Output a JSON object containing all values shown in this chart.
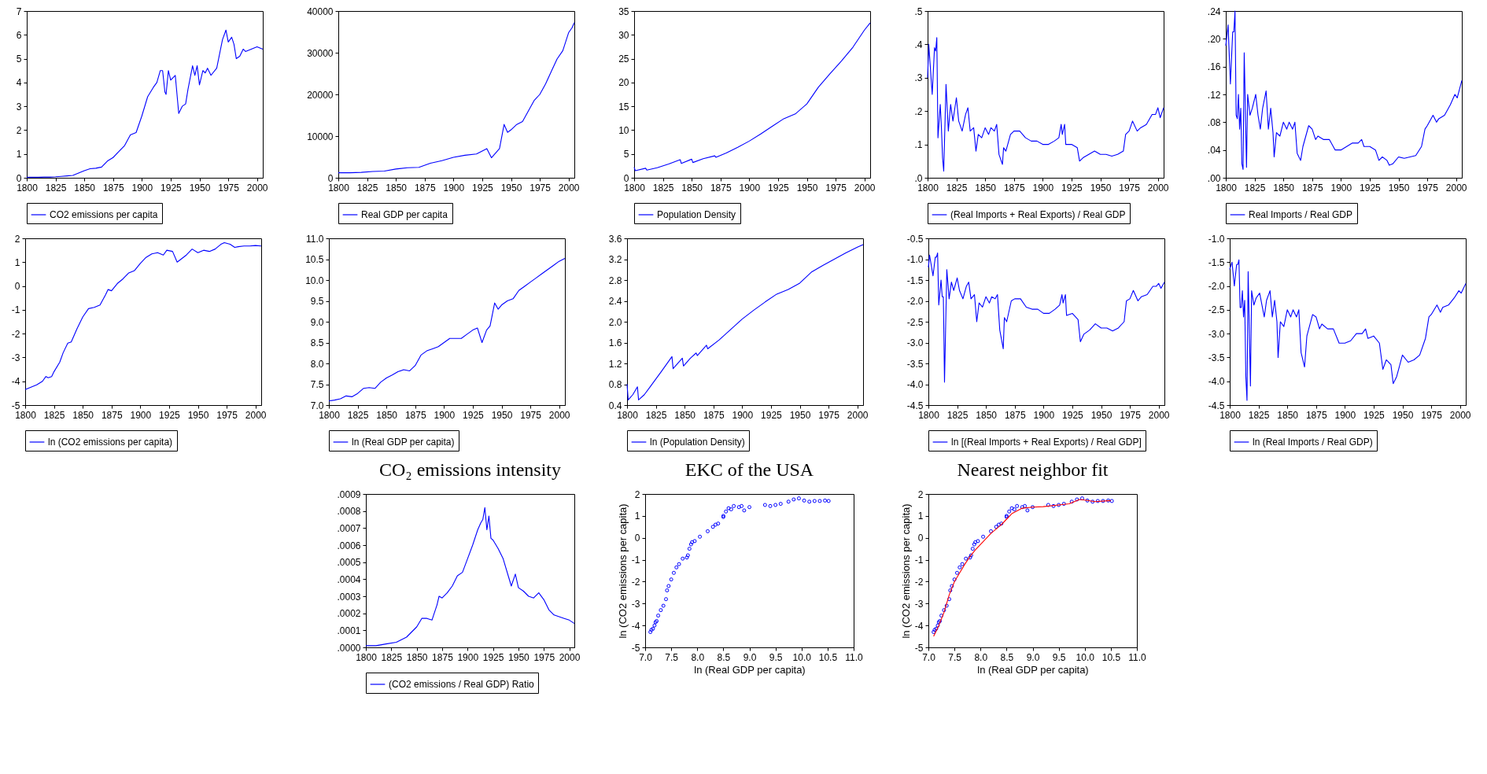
{
  "chart_data": [
    {
      "type": "line",
      "legend": "bottom",
      "xlim": [
        1800,
        2005
      ],
      "xticks": [
        1800,
        1825,
        1850,
        1875,
        1900,
        1925,
        1950,
        1975,
        2000
      ],
      "ylim": [
        0,
        7
      ],
      "yticks": [
        0,
        1,
        2,
        3,
        4,
        5,
        6,
        7
      ],
      "x": [
        1800,
        1805,
        1810,
        1815,
        1820,
        1825,
        1830,
        1835,
        1840,
        1845,
        1850,
        1855,
        1860,
        1865,
        1870,
        1875,
        1880,
        1885,
        1890,
        1895,
        1900,
        1905,
        1910,
        1913,
        1916,
        1918,
        1920,
        1921,
        1923,
        1925,
        1929,
        1932,
        1935,
        1938,
        1940,
        1944,
        1946,
        1948,
        1950,
        1953,
        1955,
        1957,
        1960,
        1965,
        1970,
        1973,
        1975,
        1978,
        1980,
        1982,
        1985,
        1988,
        1990,
        1995,
        2000,
        2005
      ],
      "series": [
        {
          "name": "CO2 emissions per capita",
          "color": "#0000ff",
          "values": [
            0.02,
            0.02,
            0.02,
            0.03,
            0.03,
            0.04,
            0.06,
            0.08,
            0.1,
            0.2,
            0.3,
            0.38,
            0.4,
            0.45,
            0.7,
            0.85,
            1.1,
            1.35,
            1.8,
            1.9,
            2.6,
            3.4,
            3.8,
            4.0,
            4.5,
            4.5,
            3.6,
            3.5,
            4.5,
            4.1,
            4.3,
            2.7,
            3.0,
            3.1,
            3.7,
            4.7,
            4.3,
            4.7,
            3.9,
            4.5,
            4.4,
            4.6,
            4.3,
            4.6,
            5.8,
            6.2,
            5.7,
            5.9,
            5.6,
            5.0,
            5.1,
            5.4,
            5.3,
            5.4,
            5.5,
            5.4
          ]
        }
      ]
    },
    {
      "type": "line",
      "legend": "bottom",
      "xlim": [
        1800,
        2005
      ],
      "xticks": [
        1800,
        1825,
        1850,
        1875,
        1900,
        1925,
        1950,
        1975,
        2000
      ],
      "ylim": [
        0,
        40000
      ],
      "yticks": [
        0,
        10000,
        20000,
        30000,
        40000
      ],
      "x": [
        1800,
        1810,
        1820,
        1830,
        1840,
        1850,
        1860,
        1870,
        1880,
        1890,
        1900,
        1910,
        1920,
        1929,
        1933,
        1940,
        1944,
        1947,
        1950,
        1955,
        1960,
        1965,
        1970,
        1975,
        1980,
        1985,
        1990,
        1995,
        2000,
        2003,
        2005
      ],
      "series": [
        {
          "name": "Real GDP per capita",
          "color": "#0000ff",
          "values": [
            1200,
            1200,
            1300,
            1500,
            1600,
            2100,
            2400,
            2500,
            3500,
            4100,
            4900,
            5400,
            5700,
            7000,
            4800,
            7000,
            12800,
            10900,
            11500,
            12800,
            13500,
            16000,
            18500,
            20000,
            22500,
            25500,
            28500,
            30500,
            34800,
            36000,
            37200
          ]
        }
      ]
    },
    {
      "type": "line",
      "legend": "bottom",
      "xlim": [
        1800,
        2005
      ],
      "xticks": [
        1800,
        1825,
        1850,
        1875,
        1900,
        1925,
        1950,
        1975,
        2000
      ],
      "ylim": [
        0,
        35
      ],
      "yticks": [
        0,
        5,
        10,
        15,
        20,
        25,
        30,
        35
      ],
      "x": [
        1800,
        1801,
        1810,
        1811,
        1820,
        1830,
        1840,
        1841,
        1850,
        1851,
        1860,
        1870,
        1871,
        1880,
        1890,
        1900,
        1910,
        1920,
        1930,
        1940,
        1950,
        1960,
        1970,
        1980,
        1990,
        2000,
        2005
      ],
      "series": [
        {
          "name": "Population Density",
          "color": "#0000ff",
          "values": [
            2.2,
            1.5,
            2,
            1.6,
            2.1,
            2.9,
            3.8,
            3.0,
            3.9,
            3.2,
            4.0,
            4.6,
            4.3,
            5.2,
            6.4,
            7.7,
            9.2,
            10.8,
            12.4,
            13.4,
            15.5,
            19.0,
            21.8,
            24.5,
            27.4,
            31.0,
            32.5
          ]
        }
      ]
    },
    {
      "type": "line",
      "legend": "bottom",
      "xlim": [
        1800,
        2005
      ],
      "xticks": [
        1800,
        1825,
        1850,
        1875,
        1900,
        1925,
        1950,
        1975,
        2000
      ],
      "ylim": [
        0,
        0.5
      ],
      "yticks": [
        {
          "value": 0,
          "label": ".0"
        },
        {
          "value": 0.1,
          "label": ".1"
        },
        {
          "value": 0.2,
          "label": ".2"
        },
        {
          "value": 0.3,
          "label": ".3"
        },
        {
          "value": 0.4,
          "label": ".4"
        },
        {
          "value": 0.5,
          "label": ".5"
        }
      ],
      "x": [
        1800,
        1801,
        1804,
        1806,
        1807,
        1808,
        1809,
        1811,
        1812,
        1813,
        1814,
        1816,
        1818,
        1820,
        1822,
        1825,
        1827,
        1830,
        1833,
        1835,
        1837,
        1840,
        1842,
        1844,
        1847,
        1850,
        1853,
        1855,
        1858,
        1860,
        1862,
        1865,
        1866,
        1868,
        1872,
        1875,
        1880,
        1885,
        1890,
        1895,
        1900,
        1905,
        1910,
        1914,
        1916,
        1917,
        1919,
        1920,
        1925,
        1930,
        1932,
        1935,
        1940,
        1945,
        1950,
        1955,
        1960,
        1965,
        1970,
        1972,
        1975,
        1978,
        1982,
        1985,
        1990,
        1995,
        1998,
        2000,
        2002,
        2005
      ],
      "series": [
        {
          "name": "(Real Imports + Real Exports) / Real GDP",
          "color": "#0000ff",
          "values": [
            0.3,
            0.4,
            0.25,
            0.39,
            0.38,
            0.42,
            0.12,
            0.22,
            0.15,
            0.06,
            0.02,
            0.28,
            0.14,
            0.22,
            0.17,
            0.24,
            0.17,
            0.14,
            0.19,
            0.21,
            0.14,
            0.15,
            0.08,
            0.13,
            0.12,
            0.15,
            0.13,
            0.15,
            0.14,
            0.16,
            0.07,
            0.04,
            0.09,
            0.08,
            0.13,
            0.14,
            0.14,
            0.12,
            0.11,
            0.11,
            0.1,
            0.1,
            0.11,
            0.12,
            0.16,
            0.13,
            0.16,
            0.1,
            0.1,
            0.09,
            0.05,
            0.06,
            0.07,
            0.08,
            0.07,
            0.07,
            0.065,
            0.07,
            0.08,
            0.13,
            0.14,
            0.17,
            0.14,
            0.15,
            0.16,
            0.19,
            0.19,
            0.21,
            0.18,
            0.21
          ]
        }
      ]
    },
    {
      "type": "line",
      "legend": "bottom",
      "xlim": [
        1800,
        2005
      ],
      "xticks": [
        1800,
        1825,
        1850,
        1875,
        1900,
        1925,
        1950,
        1975,
        2000
      ],
      "ylim": [
        0,
        0.24
      ],
      "yticks": [
        {
          "value": 0,
          "label": ".00"
        },
        {
          "value": 0.04,
          "label": ".04"
        },
        {
          "value": 0.08,
          "label": ".08"
        },
        {
          "value": 0.12,
          "label": ".12"
        },
        {
          "value": 0.16,
          "label": ".16"
        },
        {
          "value": 0.2,
          "label": ".20"
        },
        {
          "value": 0.24,
          "label": ".24"
        }
      ],
      "x": [
        1800,
        1802,
        1804,
        1806,
        1807,
        1808,
        1809,
        1810,
        1811,
        1812,
        1813,
        1814,
        1815,
        1816,
        1818,
        1819,
        1821,
        1823,
        1826,
        1828,
        1830,
        1832,
        1835,
        1837,
        1839,
        1841,
        1842,
        1844,
        1847,
        1850,
        1853,
        1855,
        1858,
        1860,
        1862,
        1865,
        1867,
        1872,
        1875,
        1878,
        1880,
        1885,
        1890,
        1895,
        1900,
        1905,
        1910,
        1915,
        1918,
        1920,
        1925,
        1930,
        1933,
        1936,
        1940,
        1942,
        1945,
        1950,
        1955,
        1960,
        1965,
        1970,
        1973,
        1975,
        1980,
        1983,
        1985,
        1990,
        1995,
        1999,
        2001,
        2005
      ],
      "series": [
        {
          "name": "Real Imports / Real GDP",
          "color": "#0000ff",
          "values": [
            0.19,
            0.22,
            0.135,
            0.21,
            0.21,
            0.24,
            0.09,
            0.085,
            0.12,
            0.07,
            0.1,
            0.02,
            0.012,
            0.18,
            0.015,
            0.12,
            0.09,
            0.1,
            0.12,
            0.09,
            0.07,
            0.1,
            0.125,
            0.07,
            0.1,
            0.065,
            0.03,
            0.065,
            0.06,
            0.08,
            0.07,
            0.08,
            0.07,
            0.08,
            0.035,
            0.025,
            0.045,
            0.075,
            0.07,
            0.055,
            0.06,
            0.055,
            0.055,
            0.04,
            0.04,
            0.045,
            0.05,
            0.05,
            0.055,
            0.045,
            0.045,
            0.04,
            0.025,
            0.03,
            0.025,
            0.018,
            0.02,
            0.03,
            0.028,
            0.03,
            0.032,
            0.045,
            0.07,
            0.075,
            0.09,
            0.08,
            0.085,
            0.09,
            0.105,
            0.12,
            0.115,
            0.14
          ]
        }
      ]
    },
    {
      "type": "line",
      "legend": "bottom",
      "xlim": [
        1800,
        2005
      ],
      "xticks": [
        1800,
        1825,
        1850,
        1875,
        1900,
        1925,
        1950,
        1975,
        2000
      ],
      "ylim": [
        -5,
        2
      ],
      "yticks": [
        -5,
        -4,
        -3,
        -2,
        -1,
        0,
        1,
        2
      ],
      "x": [
        1800,
        1805,
        1810,
        1815,
        1818,
        1820,
        1823,
        1825,
        1830,
        1833,
        1837,
        1840,
        1845,
        1850,
        1855,
        1860,
        1865,
        1870,
        1872,
        1875,
        1880,
        1885,
        1890,
        1895,
        1900,
        1905,
        1910,
        1915,
        1920,
        1923,
        1928,
        1932,
        1936,
        1940,
        1945,
        1950,
        1955,
        1960,
        1965,
        1970,
        1973,
        1978,
        1982,
        1985,
        1990,
        1995,
        2000,
        2005
      ],
      "series": [
        {
          "name": "ln (CO2 emissions per capita)",
          "color": "#0000ff",
          "values": [
            -4.35,
            -4.25,
            -4.15,
            -4.0,
            -3.8,
            -3.85,
            -3.8,
            -3.6,
            -3.2,
            -2.8,
            -2.4,
            -2.35,
            -1.8,
            -1.3,
            -0.95,
            -0.9,
            -0.8,
            -0.35,
            -0.15,
            -0.2,
            0.1,
            0.3,
            0.55,
            0.65,
            0.95,
            1.2,
            1.35,
            1.4,
            1.3,
            1.5,
            1.45,
            1.0,
            1.15,
            1.3,
            1.55,
            1.4,
            1.5,
            1.45,
            1.55,
            1.75,
            1.82,
            1.75,
            1.62,
            1.65,
            1.68,
            1.68,
            1.7,
            1.68
          ]
        }
      ]
    },
    {
      "type": "line",
      "legend": "bottom",
      "xlim": [
        1800,
        2005
      ],
      "xticks": [
        1800,
        1825,
        1850,
        1875,
        1900,
        1925,
        1950,
        1975,
        2000
      ],
      "ylim": [
        7,
        11
      ],
      "yticks": [
        {
          "value": 7,
          "label": "7.0"
        },
        7.5,
        {
          "value": 8,
          "label": "8.0"
        },
        8.5,
        {
          "value": 9,
          "label": "9.0"
        },
        9.5,
        {
          "value": 10,
          "label": "10.0"
        },
        10.5,
        {
          "value": 11,
          "label": "11.0"
        }
      ],
      "x": [
        1800,
        1805,
        1810,
        1815,
        1820,
        1825,
        1830,
        1835,
        1840,
        1845,
        1850,
        1855,
        1860,
        1865,
        1870,
        1875,
        1880,
        1885,
        1890,
        1895,
        1900,
        1905,
        1910,
        1915,
        1920,
        1925,
        1929,
        1933,
        1937,
        1940,
        1944,
        1947,
        1950,
        1955,
        1960,
        1965,
        1970,
        1975,
        1980,
        1985,
        1990,
        1995,
        2000,
        2005
      ],
      "series": [
        {
          "name": "ln (Real GDP per capita)",
          "color": "#0000ff",
          "values": [
            7.1,
            7.12,
            7.15,
            7.22,
            7.2,
            7.28,
            7.4,
            7.42,
            7.4,
            7.55,
            7.65,
            7.72,
            7.8,
            7.85,
            7.82,
            7.95,
            8.2,
            8.3,
            8.35,
            8.4,
            8.5,
            8.6,
            8.6,
            8.6,
            8.7,
            8.8,
            8.85,
            8.5,
            8.8,
            8.9,
            9.45,
            9.3,
            9.4,
            9.5,
            9.55,
            9.75,
            9.85,
            9.95,
            10.05,
            10.15,
            10.25,
            10.35,
            10.45,
            10.52
          ]
        }
      ]
    },
    {
      "type": "line",
      "legend": "bottom",
      "xlim": [
        1800,
        2005
      ],
      "xticks": [
        1800,
        1825,
        1850,
        1875,
        1900,
        1925,
        1950,
        1975,
        2000
      ],
      "ylim": [
        0.4,
        3.6
      ],
      "yticks": [
        0.4,
        0.8,
        1.2,
        1.6,
        {
          "value": 2,
          "label": "2.0"
        },
        2.4,
        2.8,
        3.2,
        3.6
      ],
      "x": [
        1800,
        1801,
        1805,
        1809,
        1810,
        1815,
        1820,
        1830,
        1839,
        1840,
        1848,
        1849,
        1855,
        1860,
        1861,
        1869,
        1870,
        1880,
        1890,
        1900,
        1910,
        1920,
        1930,
        1940,
        1950,
        1960,
        1970,
        1980,
        1990,
        2000,
        2005
      ],
      "series": [
        {
          "name": "ln (Population Density)",
          "color": "#0000ff",
          "values": [
            0.8,
            0.5,
            0.6,
            0.75,
            0.5,
            0.6,
            0.75,
            1.05,
            1.33,
            1.1,
            1.3,
            1.15,
            1.3,
            1.4,
            1.35,
            1.55,
            1.48,
            1.65,
            1.85,
            2.05,
            2.22,
            2.38,
            2.53,
            2.62,
            2.74,
            2.95,
            3.08,
            3.2,
            3.32,
            3.43,
            3.48
          ]
        }
      ]
    },
    {
      "type": "line",
      "legend": "bottom",
      "xlim": [
        1800,
        2005
      ],
      "xticks": [
        1800,
        1825,
        1850,
        1875,
        1900,
        1925,
        1950,
        1975,
        2000
      ],
      "ylim": [
        -4.5,
        -0.5
      ],
      "yticks": [
        -4.5,
        {
          "value": -4,
          "label": "-4.0"
        },
        -3.5,
        {
          "value": -3,
          "label": "-3.0"
        },
        -2.5,
        {
          "value": -2,
          "label": "-2.0"
        },
        -1.5,
        {
          "value": -1,
          "label": "-1.0"
        },
        -0.5
      ],
      "x": [
        1800,
        1801,
        1804,
        1806,
        1807,
        1808,
        1809,
        1811,
        1812,
        1813,
        1814,
        1816,
        1818,
        1820,
        1822,
        1825,
        1827,
        1830,
        1833,
        1835,
        1837,
        1840,
        1842,
        1844,
        1847,
        1850,
        1853,
        1855,
        1858,
        1860,
        1862,
        1865,
        1866,
        1868,
        1872,
        1875,
        1880,
        1885,
        1890,
        1895,
        1900,
        1905,
        1910,
        1914,
        1916,
        1917,
        1919,
        1920,
        1925,
        1930,
        1932,
        1935,
        1940,
        1945,
        1950,
        1955,
        1960,
        1965,
        1970,
        1972,
        1975,
        1978,
        1982,
        1985,
        1990,
        1995,
        1998,
        2000,
        2002,
        2005
      ],
      "series": [
        {
          "name": "ln [(Real Imports + Real Exports) / Real GDP]",
          "color": "#0000ff",
          "values": [
            -1.2,
            -0.9,
            -1.4,
            -0.95,
            -0.95,
            -0.85,
            -2.1,
            -1.5,
            -1.9,
            -1.9,
            -3.95,
            -1.25,
            -1.95,
            -1.55,
            -1.75,
            -1.45,
            -1.75,
            -1.95,
            -1.65,
            -1.55,
            -1.95,
            -1.85,
            -2.5,
            -2.05,
            -2.15,
            -1.9,
            -2.05,
            -1.9,
            -1.95,
            -1.85,
            -2.7,
            -3.15,
            -2.4,
            -2.5,
            -2.0,
            -1.95,
            -1.95,
            -2.15,
            -2.2,
            -2.2,
            -2.3,
            -2.3,
            -2.2,
            -2.1,
            -1.85,
            -2.05,
            -1.85,
            -2.35,
            -2.3,
            -2.45,
            -2.98,
            -2.8,
            -2.7,
            -2.55,
            -2.65,
            -2.65,
            -2.72,
            -2.65,
            -2.5,
            -2.0,
            -1.95,
            -1.75,
            -2.0,
            -1.9,
            -1.85,
            -1.65,
            -1.65,
            -1.58,
            -1.7,
            -1.55
          ]
        }
      ]
    },
    {
      "type": "line",
      "legend": "bottom",
      "xlim": [
        1800,
        2005
      ],
      "xticks": [
        1800,
        1825,
        1850,
        1875,
        1900,
        1925,
        1950,
        1975,
        2000
      ],
      "ylim": [
        -4.5,
        -1
      ],
      "yticks": [
        -4.5,
        {
          "value": -4,
          "label": "-4.0"
        },
        -3.5,
        {
          "value": -3,
          "label": "-3.0"
        },
        -2.5,
        {
          "value": -2,
          "label": "-2.0"
        },
        -1.5,
        {
          "value": -1,
          "label": "-1.0"
        }
      ],
      "x": [
        1800,
        1802,
        1804,
        1806,
        1807,
        1808,
        1809,
        1810,
        1811,
        1812,
        1813,
        1814,
        1815,
        1816,
        1818,
        1819,
        1821,
        1823,
        1826,
        1828,
        1830,
        1832,
        1835,
        1837,
        1839,
        1841,
        1842,
        1844,
        1847,
        1850,
        1853,
        1855,
        1858,
        1860,
        1862,
        1865,
        1867,
        1872,
        1875,
        1878,
        1880,
        1885,
        1890,
        1895,
        1900,
        1905,
        1910,
        1915,
        1918,
        1920,
        1925,
        1930,
        1933,
        1936,
        1940,
        1942,
        1945,
        1950,
        1955,
        1960,
        1965,
        1970,
        1973,
        1975,
        1980,
        1983,
        1985,
        1990,
        1995,
        1999,
        2001,
        2005
      ],
      "series": [
        {
          "name": "ln (Real Imports / Real GDP)",
          "color": "#0000ff",
          "values": [
            -1.65,
            -1.5,
            -2.0,
            -1.55,
            -1.55,
            -1.45,
            -2.45,
            -2.45,
            -2.1,
            -2.65,
            -2.3,
            -3.9,
            -4.4,
            -1.7,
            -4.1,
            -2.1,
            -2.4,
            -2.25,
            -2.15,
            -2.4,
            -2.65,
            -2.3,
            -2.1,
            -2.65,
            -2.3,
            -2.75,
            -3.5,
            -2.75,
            -2.85,
            -2.5,
            -2.65,
            -2.5,
            -2.65,
            -2.5,
            -3.4,
            -3.7,
            -3.05,
            -2.6,
            -2.65,
            -2.9,
            -2.8,
            -2.9,
            -2.9,
            -3.2,
            -3.2,
            -3.15,
            -3.0,
            -3.0,
            -2.9,
            -3.1,
            -3.05,
            -3.2,
            -3.75,
            -3.55,
            -3.65,
            -4.05,
            -3.9,
            -3.45,
            -3.6,
            -3.55,
            -3.45,
            -3.1,
            -2.65,
            -2.6,
            -2.4,
            -2.55,
            -2.45,
            -2.4,
            -2.25,
            -2.1,
            -2.15,
            -1.95
          ]
        }
      ]
    },
    {
      "type": "line",
      "title": "CO₂ emissions intensity",
      "legend": "bottom",
      "xlim": [
        1800,
        2005
      ],
      "xticks": [
        1800,
        1825,
        1850,
        1875,
        1900,
        1925,
        1950,
        1975,
        2000
      ],
      "ylim": [
        0,
        0.0009
      ],
      "yticks": [
        {
          "value": 0,
          "label": ".0000"
        },
        {
          "value": 0.0001,
          "label": ".0001"
        },
        {
          "value": 0.0002,
          "label": ".0002"
        },
        {
          "value": 0.0003,
          "label": ".0003"
        },
        {
          "value": 0.0004,
          "label": ".0004"
        },
        {
          "value": 0.0005,
          "label": ".0005"
        },
        {
          "value": 0.0006,
          "label": ".0006"
        },
        {
          "value": 0.0007,
          "label": ".0007"
        },
        {
          "value": 0.0008,
          "label": ".0008"
        },
        {
          "value": 0.0009,
          "label": ".0009"
        }
      ],
      "x": [
        1800,
        1810,
        1820,
        1830,
        1840,
        1850,
        1855,
        1860,
        1865,
        1870,
        1872,
        1875,
        1880,
        1885,
        1890,
        1895,
        1900,
        1905,
        1910,
        1913,
        1915,
        1917,
        1919,
        1921,
        1923,
        1925,
        1930,
        1935,
        1940,
        1943,
        1947,
        1950,
        1955,
        1960,
        1965,
        1970,
        1975,
        1980,
        1985,
        1990,
        1995,
        2000,
        2005
      ],
      "series": [
        {
          "name": "(CO2 emissions / Real GDP) Ratio",
          "color": "#0000ff",
          "values": [
            1e-05,
            1e-05,
            2e-05,
            3e-05,
            6e-05,
            0.00012,
            0.00017,
            0.00017,
            0.00016,
            0.00025,
            0.0003,
            0.00029,
            0.00032,
            0.00036,
            0.00042,
            0.00044,
            0.00052,
            0.0006,
            0.00069,
            0.00073,
            0.00075,
            0.00082,
            0.00069,
            0.00077,
            0.00064,
            0.00063,
            0.00058,
            0.00052,
            0.00042,
            0.00036,
            0.00043,
            0.00035,
            0.00033,
            0.0003,
            0.00029,
            0.00032,
            0.00028,
            0.00022,
            0.00019,
            0.00018,
            0.00017,
            0.00016,
            0.00014
          ]
        }
      ]
    },
    {
      "type": "scatter",
      "title": "EKC of the USA",
      "xlabel": "ln (Real GDP per capita)",
      "ylabel": "ln (CO2 emissions per capita)",
      "marker": "circle",
      "xlim": [
        7,
        11
      ],
      "xticks": [
        {
          "value": 7,
          "label": "7.0"
        },
        7.5,
        {
          "value": 8,
          "label": "8.0"
        },
        8.5,
        {
          "value": 9,
          "label": "9.0"
        },
        9.5,
        {
          "value": 10,
          "label": "10.0"
        },
        10.5,
        {
          "value": 11,
          "label": "11.0"
        }
      ],
      "ylim": [
        -5,
        2
      ],
      "yticks": [
        -5,
        -4,
        -3,
        -2,
        -1,
        0,
        1,
        2
      ],
      "x": [
        7.1,
        7.12,
        7.15,
        7.18,
        7.2,
        7.22,
        7.25,
        7.3,
        7.35,
        7.4,
        7.42,
        7.45,
        7.5,
        7.55,
        7.6,
        7.65,
        7.72,
        7.8,
        7.82,
        7.85,
        7.88,
        7.9,
        7.95,
        8.05,
        8.2,
        8.3,
        8.35,
        8.4,
        8.5,
        8.55,
        8.6,
        8.65,
        8.7,
        8.8,
        8.85,
        8.5,
        8.9,
        9.0,
        9.3,
        9.4,
        9.5,
        9.6,
        9.75,
        9.85,
        9.95,
        10.05,
        10.15,
        10.25,
        10.35,
        10.45,
        10.52
      ],
      "series": [
        {
          "color": "#0000ff",
          "values": [
            -4.3,
            -4.2,
            -4.15,
            -4.0,
            -3.85,
            -3.8,
            -3.55,
            -3.3,
            -3.1,
            -2.8,
            -2.4,
            -2.2,
            -1.9,
            -1.6,
            -1.35,
            -1.2,
            -0.95,
            -0.9,
            -0.8,
            -0.5,
            -0.3,
            -0.2,
            -0.15,
            0.05,
            0.3,
            0.5,
            0.6,
            0.65,
            0.95,
            1.2,
            1.35,
            1.3,
            1.45,
            1.4,
            1.45,
            1.0,
            1.25,
            1.4,
            1.5,
            1.45,
            1.5,
            1.55,
            1.65,
            1.75,
            1.8,
            1.7,
            1.65,
            1.68,
            1.68,
            1.7,
            1.68
          ]
        }
      ]
    },
    {
      "type": "scatter",
      "title": "Nearest neighbor fit",
      "xlabel": "ln (Real GDP per capita)",
      "ylabel": "ln (CO2 emissions per capita)",
      "xlim": [
        7,
        11
      ],
      "xticks": [
        {
          "value": 7,
          "label": "7.0"
        },
        7.5,
        {
          "value": 8,
          "label": "8.0"
        },
        8.5,
        {
          "value": 9,
          "label": "9.0"
        },
        9.5,
        {
          "value": 10,
          "label": "10.0"
        },
        10.5,
        {
          "value": 11,
          "label": "11.0"
        }
      ],
      "ylim": [
        -5,
        2
      ],
      "yticks": [
        -5,
        -4,
        -3,
        -2,
        -1,
        0,
        1,
        2
      ],
      "series": [
        {
          "color": "#0000ff",
          "marker": "circle",
          "x": [
            7.1,
            7.12,
            7.15,
            7.18,
            7.2,
            7.22,
            7.25,
            7.3,
            7.35,
            7.4,
            7.42,
            7.45,
            7.5,
            7.55,
            7.6,
            7.65,
            7.72,
            7.8,
            7.82,
            7.85,
            7.88,
            7.9,
            7.95,
            8.05,
            8.2,
            8.3,
            8.35,
            8.4,
            8.5,
            8.55,
            8.6,
            8.65,
            8.7,
            8.8,
            8.85,
            8.5,
            8.9,
            9.0,
            9.3,
            9.4,
            9.5,
            9.6,
            9.75,
            9.85,
            9.95,
            10.05,
            10.15,
            10.25,
            10.35,
            10.45,
            10.52
          ],
          "values": [
            -4.3,
            -4.2,
            -4.15,
            -4.0,
            -3.85,
            -3.8,
            -3.55,
            -3.3,
            -3.1,
            -2.8,
            -2.4,
            -2.2,
            -1.9,
            -1.6,
            -1.35,
            -1.2,
            -0.95,
            -0.9,
            -0.8,
            -0.5,
            -0.3,
            -0.2,
            -0.15,
            0.05,
            0.3,
            0.5,
            0.6,
            0.65,
            0.95,
            1.2,
            1.35,
            1.3,
            1.45,
            1.4,
            1.45,
            1.0,
            1.25,
            1.4,
            1.5,
            1.45,
            1.5,
            1.55,
            1.65,
            1.75,
            1.8,
            1.7,
            1.65,
            1.68,
            1.68,
            1.7,
            1.68
          ]
        },
        {
          "type": "line",
          "color": "#ff0000",
          "marker": "none",
          "x": [
            7.1,
            7.2,
            7.3,
            7.4,
            7.5,
            7.6,
            7.7,
            7.8,
            7.9,
            8.0,
            8.2,
            8.4,
            8.6,
            8.8,
            9.0,
            9.2,
            9.5,
            9.7,
            9.9,
            10.0,
            10.2,
            10.5
          ],
          "values": [
            -4.5,
            -4.0,
            -3.4,
            -2.6,
            -2.0,
            -1.6,
            -1.2,
            -0.85,
            -0.55,
            -0.3,
            0.2,
            0.6,
            1.1,
            1.35,
            1.4,
            1.42,
            1.5,
            1.55,
            1.75,
            1.72,
            1.65,
            1.7
          ]
        }
      ]
    }
  ]
}
